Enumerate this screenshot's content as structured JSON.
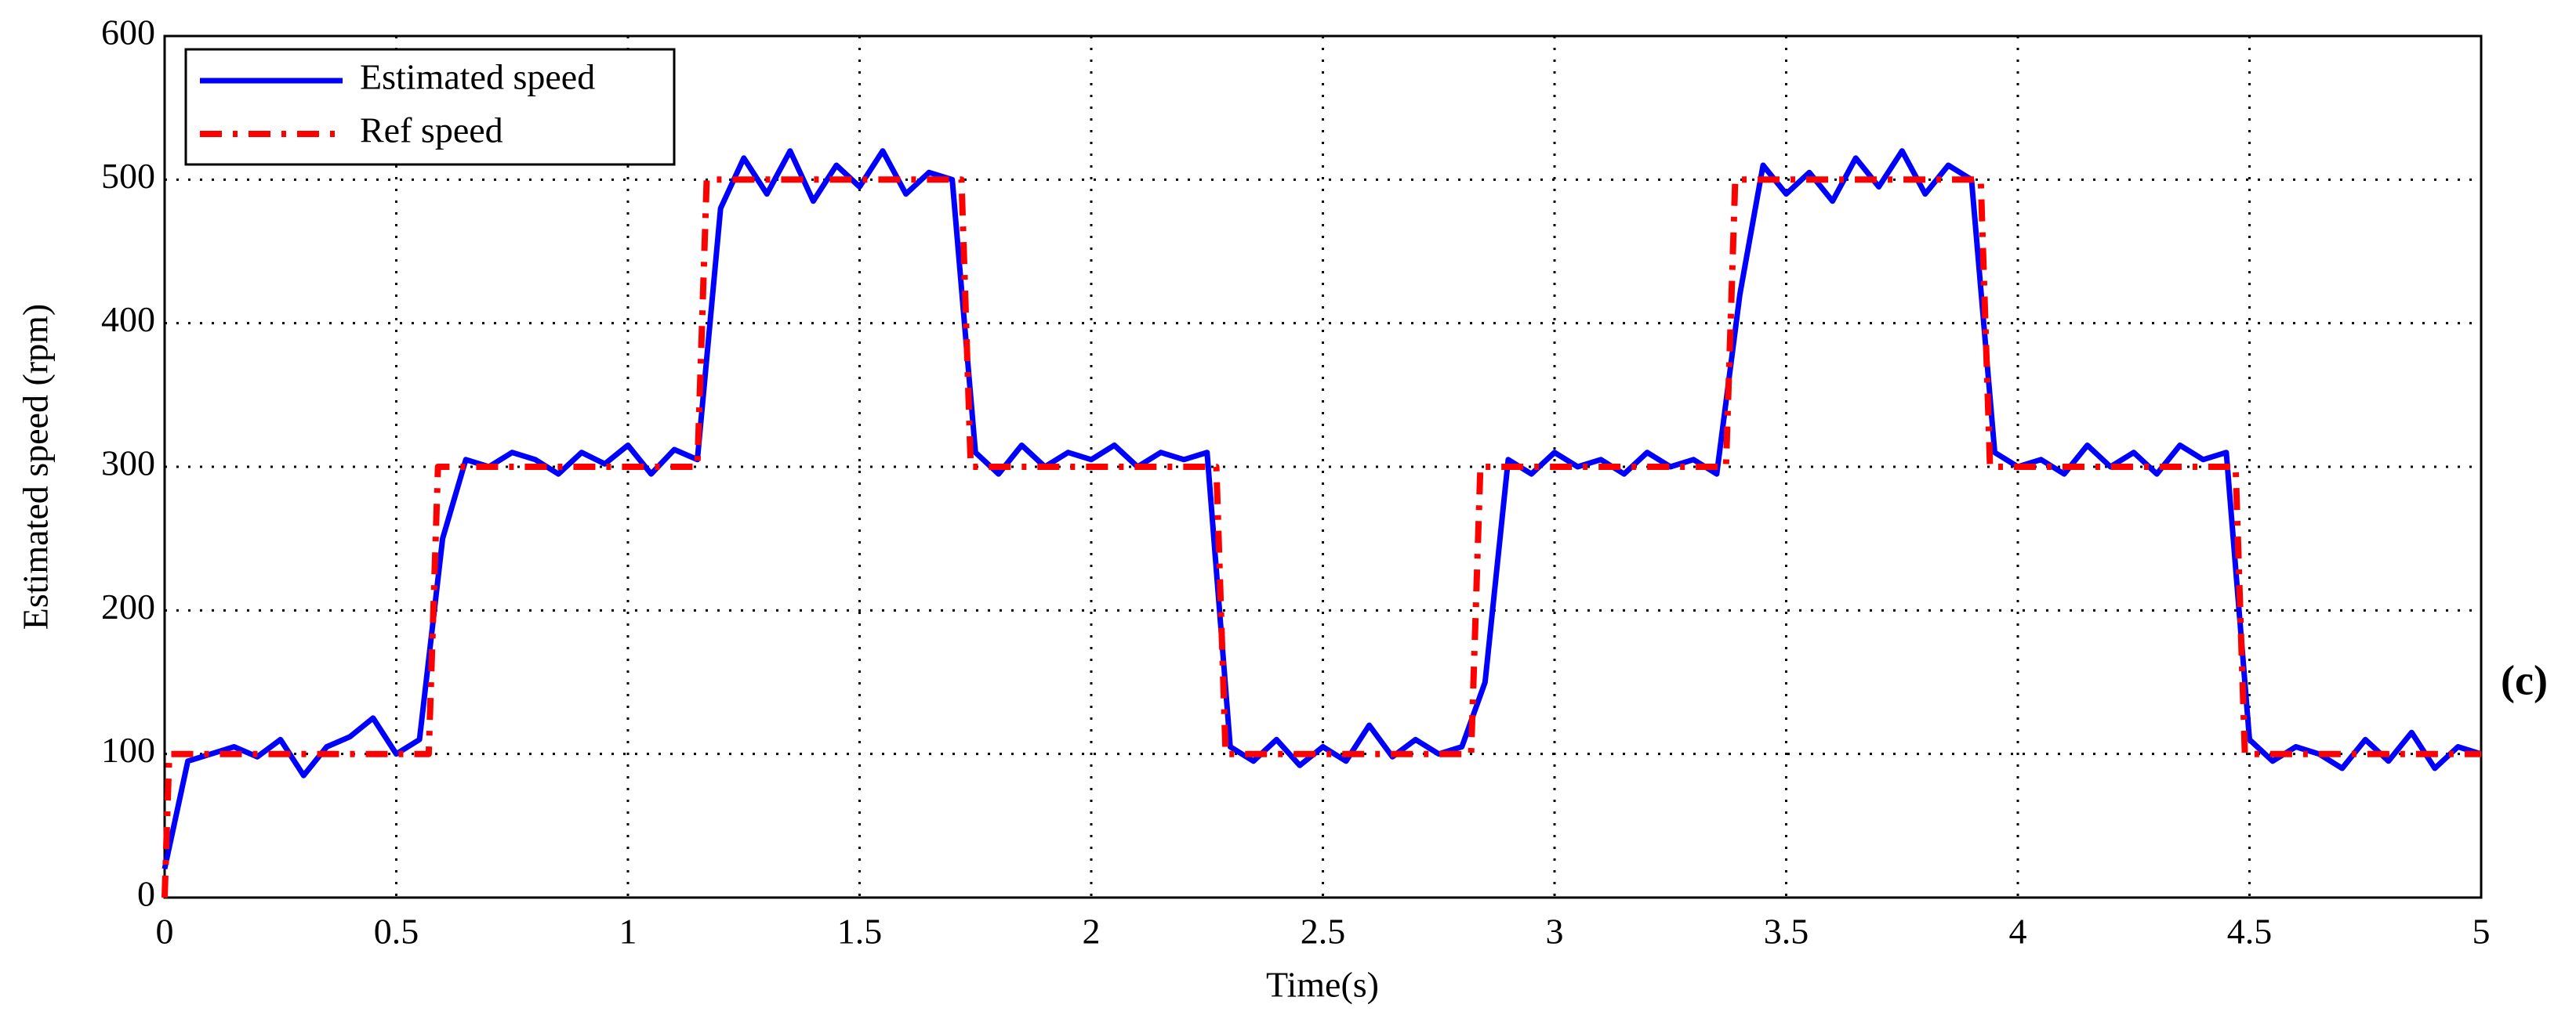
{
  "chart_data": {
    "type": "line",
    "y_label": "Estimated speed (rpm)",
    "x_label": "Time(s)",
    "annotation": "(c)",
    "xlim": [
      0,
      5
    ],
    "ylim": [
      0,
      600
    ],
    "xticks": [
      0,
      0.5,
      1,
      1.5,
      2,
      2.5,
      3,
      3.5,
      4,
      4.5,
      5
    ],
    "yticks": [
      0,
      100,
      200,
      300,
      400,
      500,
      600
    ],
    "grid": true,
    "legend": "upper left",
    "series": [
      {
        "name": "Estimated speed",
        "color": "#0000ff",
        "style": "solid",
        "x": [
          0,
          0.05,
          0.1,
          0.15,
          0.2,
          0.25,
          0.3,
          0.35,
          0.4,
          0.45,
          0.5,
          0.55,
          0.6,
          0.65,
          0.7,
          0.75,
          0.8,
          0.85,
          0.9,
          0.95,
          1,
          1.05,
          1.1,
          1.15,
          1.2,
          1.25,
          1.3,
          1.35,
          1.4,
          1.45,
          1.5,
          1.55,
          1.6,
          1.65,
          1.7,
          1.75,
          1.8,
          1.85,
          1.9,
          1.95,
          2,
          2.05,
          2.1,
          2.15,
          2.2,
          2.25,
          2.3,
          2.35,
          2.4,
          2.45,
          2.5,
          2.55,
          2.6,
          2.65,
          2.7,
          2.75,
          2.8,
          2.85,
          2.9,
          2.95,
          3,
          3.05,
          3.1,
          3.15,
          3.2,
          3.25,
          3.3,
          3.35,
          3.4,
          3.45,
          3.5,
          3.55,
          3.6,
          3.65,
          3.7,
          3.75,
          3.8,
          3.85,
          3.9,
          3.95,
          4,
          4.05,
          4.1,
          4.15,
          4.2,
          4.25,
          4.3,
          4.35,
          4.4,
          4.45,
          4.5,
          4.55,
          4.6,
          4.65,
          4.7,
          4.75,
          4.8,
          4.85,
          4.9,
          4.95,
          5
        ],
        "values": [
          20,
          95,
          100,
          105,
          98,
          110,
          85,
          105,
          112,
          125,
          100,
          110,
          250,
          305,
          300,
          310,
          305,
          295,
          310,
          302,
          315,
          295,
          312,
          305,
          480,
          515,
          490,
          520,
          485,
          510,
          495,
          520,
          490,
          505,
          500,
          310,
          295,
          315,
          300,
          310,
          305,
          315,
          300,
          310,
          305,
          310,
          105,
          95,
          110,
          92,
          105,
          95,
          120,
          98,
          110,
          100,
          105,
          150,
          305,
          295,
          310,
          300,
          305,
          295,
          310,
          300,
          305,
          295,
          420,
          510,
          490,
          505,
          485,
          515,
          495,
          520,
          490,
          510,
          500,
          310,
          300,
          305,
          295,
          315,
          300,
          310,
          295,
          315,
          305,
          310,
          110,
          95,
          105,
          100,
          90,
          110,
          95,
          115,
          90,
          105,
          100
        ]
      },
      {
        "name": "Ref speed",
        "color": "#ff0000",
        "style": "dashdot",
        "x": [
          0,
          0.01,
          0.57,
          0.59,
          1.15,
          1.17,
          1.72,
          1.74,
          2.27,
          2.29,
          2.82,
          2.84,
          3.37,
          3.39,
          3.92,
          3.94,
          4.47,
          4.49,
          5
        ],
        "values": [
          0,
          100,
          100,
          300,
          300,
          500,
          500,
          300,
          300,
          100,
          100,
          300,
          300,
          500,
          500,
          300,
          300,
          100,
          100
        ]
      }
    ]
  }
}
